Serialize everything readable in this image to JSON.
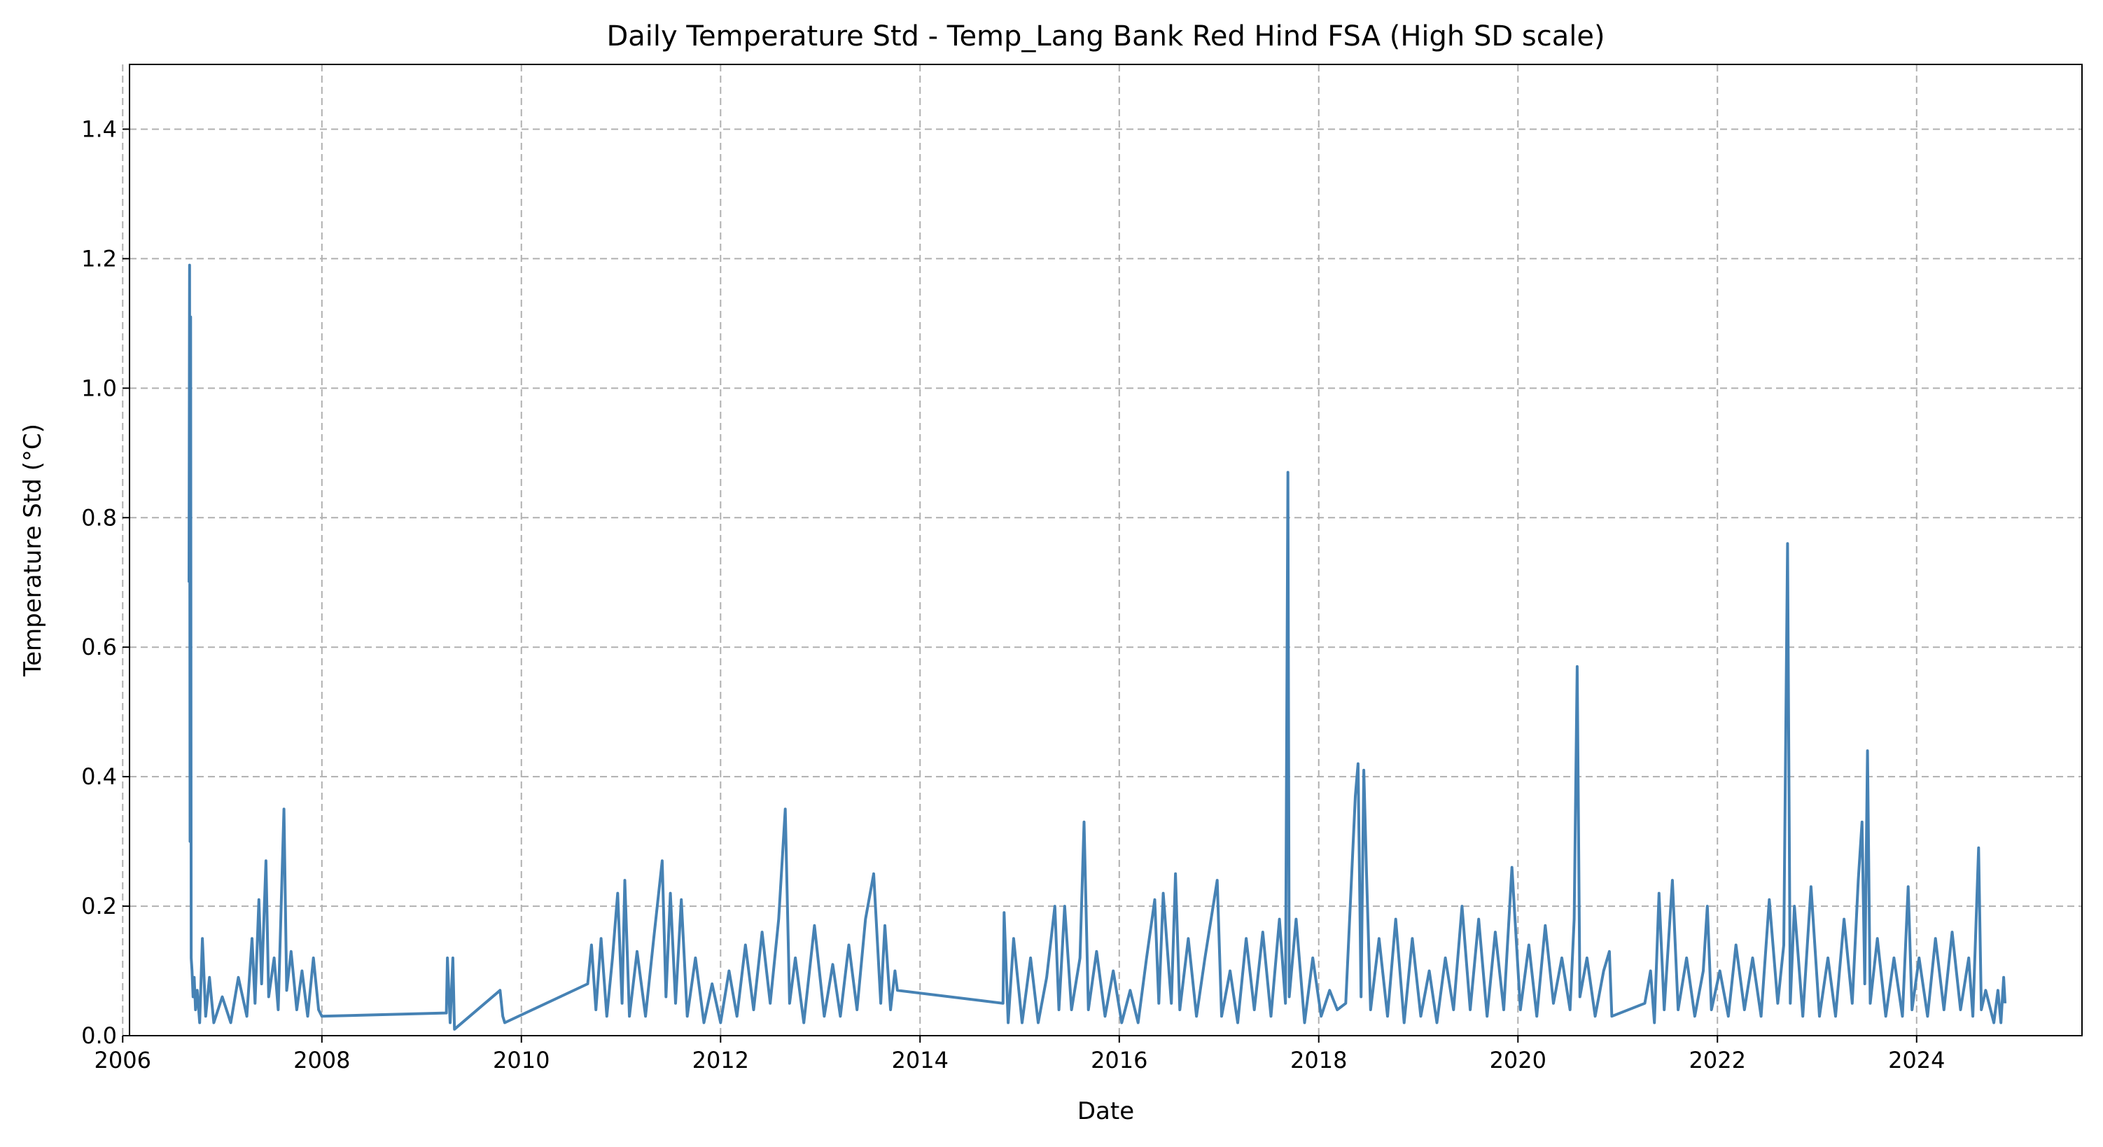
{
  "chart_data": {
    "type": "line",
    "title": "Daily Temperature Std - Temp_Lang Bank Red Hind FSA (High SD scale)",
    "xlabel": "Date",
    "ylabel": "Temperature Std (°C)",
    "xlim": [
      "2006-01-26",
      "2025-08-29"
    ],
    "ylim": [
      0,
      1.5
    ],
    "grid": true,
    "line_color": "#4682b4",
    "x_ticks": [
      "2006",
      "2008",
      "2010",
      "2012",
      "2014",
      "2016",
      "2018",
      "2020",
      "2022",
      "2024"
    ],
    "y_ticks": [
      "0.0",
      "0.2",
      "0.4",
      "0.6",
      "0.8",
      "1.0",
      "1.2",
      "1.4"
    ],
    "series": [
      {
        "points": [
          [
            "2006-09-01",
            0.7
          ],
          [
            "2006-09-03",
            1.19
          ],
          [
            "2006-09-05",
            0.3
          ],
          [
            "2006-09-07",
            1.11
          ],
          [
            "2006-09-09",
            0.12
          ],
          [
            "2006-09-12",
            0.1
          ],
          [
            "2006-09-16",
            0.06
          ],
          [
            "2006-09-20",
            0.09
          ],
          [
            "2006-09-25",
            0.04
          ],
          [
            "2006-10-01",
            0.07
          ],
          [
            "2006-10-10",
            0.02
          ],
          [
            "2006-10-20",
            0.15
          ],
          [
            "2006-11-01",
            0.03
          ],
          [
            "2006-11-15",
            0.09
          ],
          [
            "2006-12-01",
            0.02
          ],
          [
            "2007-01-01",
            0.06
          ],
          [
            "2007-02-01",
            0.02
          ],
          [
            "2007-03-01",
            0.09
          ],
          [
            "2007-04-01",
            0.03
          ],
          [
            "2007-04-20",
            0.15
          ],
          [
            "2007-05-01",
            0.05
          ],
          [
            "2007-05-15",
            0.21
          ],
          [
            "2007-05-25",
            0.08
          ],
          [
            "2007-06-10",
            0.27
          ],
          [
            "2007-06-20",
            0.06
          ],
          [
            "2007-07-10",
            0.12
          ],
          [
            "2007-07-25",
            0.04
          ],
          [
            "2007-08-15",
            0.35
          ],
          [
            "2007-08-25",
            0.07
          ],
          [
            "2007-09-10",
            0.13
          ],
          [
            "2007-10-01",
            0.04
          ],
          [
            "2007-10-20",
            0.1
          ],
          [
            "2007-11-10",
            0.03
          ],
          [
            "2007-12-01",
            0.12
          ],
          [
            "2007-12-20",
            0.04
          ],
          [
            "2008-01-01",
            0.03
          ],
          [
            "2009-04-01",
            0.035
          ],
          [
            "2009-04-05",
            0.12
          ],
          [
            "2009-04-15",
            0.02
          ],
          [
            "2009-04-25",
            0.12
          ],
          [
            "2009-05-01",
            0.01
          ],
          [
            "2009-10-15",
            0.07
          ],
          [
            "2009-10-25",
            0.03
          ],
          [
            "2009-11-01",
            0.02
          ],
          [
            "2010-09-01",
            0.08
          ],
          [
            "2010-09-15",
            0.14
          ],
          [
            "2010-10-01",
            0.04
          ],
          [
            "2010-10-20",
            0.15
          ],
          [
            "2010-11-10",
            0.03
          ],
          [
            "2010-12-01",
            0.12
          ],
          [
            "2010-12-20",
            0.22
          ],
          [
            "2011-01-05",
            0.05
          ],
          [
            "2011-01-15",
            0.24
          ],
          [
            "2011-02-01",
            0.03
          ],
          [
            "2011-03-01",
            0.13
          ],
          [
            "2011-04-01",
            0.03
          ],
          [
            "2011-05-01",
            0.15
          ],
          [
            "2011-06-01",
            0.27
          ],
          [
            "2011-06-15",
            0.06
          ],
          [
            "2011-07-01",
            0.22
          ],
          [
            "2011-07-20",
            0.05
          ],
          [
            "2011-08-10",
            0.21
          ],
          [
            "2011-09-01",
            0.03
          ],
          [
            "2011-10-01",
            0.12
          ],
          [
            "2011-11-01",
            0.02
          ],
          [
            "2011-12-01",
            0.08
          ],
          [
            "2012-01-01",
            0.02
          ],
          [
            "2012-02-01",
            0.1
          ],
          [
            "2012-03-01",
            0.03
          ],
          [
            "2012-04-01",
            0.14
          ],
          [
            "2012-05-01",
            0.04
          ],
          [
            "2012-06-01",
            0.16
          ],
          [
            "2012-07-01",
            0.05
          ],
          [
            "2012-08-01",
            0.18
          ],
          [
            "2012-08-25",
            0.35
          ],
          [
            "2012-09-10",
            0.05
          ],
          [
            "2012-10-01",
            0.12
          ],
          [
            "2012-11-01",
            0.02
          ],
          [
            "2012-12-10",
            0.17
          ],
          [
            "2013-01-15",
            0.03
          ],
          [
            "2013-02-15",
            0.11
          ],
          [
            "2013-03-15",
            0.03
          ],
          [
            "2013-04-15",
            0.14
          ],
          [
            "2013-05-15",
            0.04
          ],
          [
            "2013-06-15",
            0.18
          ],
          [
            "2013-07-15",
            0.25
          ],
          [
            "2013-08-10",
            0.05
          ],
          [
            "2013-08-25",
            0.17
          ],
          [
            "2013-09-15",
            0.04
          ],
          [
            "2013-10-01",
            0.1
          ],
          [
            "2013-10-10",
            0.07
          ],
          [
            "2014-11-01",
            0.05
          ],
          [
            "2014-11-05",
            0.19
          ],
          [
            "2014-11-20",
            0.02
          ],
          [
            "2014-12-10",
            0.15
          ],
          [
            "2015-01-10",
            0.02
          ],
          [
            "2015-02-10",
            0.12
          ],
          [
            "2015-03-10",
            0.02
          ],
          [
            "2015-04-10",
            0.09
          ],
          [
            "2015-05-10",
            0.2
          ],
          [
            "2015-05-25",
            0.04
          ],
          [
            "2015-06-15",
            0.2
          ],
          [
            "2015-07-10",
            0.04
          ],
          [
            "2015-08-10",
            0.12
          ],
          [
            "2015-08-25",
            0.33
          ],
          [
            "2015-09-10",
            0.04
          ],
          [
            "2015-10-10",
            0.13
          ],
          [
            "2015-11-10",
            0.03
          ],
          [
            "2015-12-10",
            0.1
          ],
          [
            "2016-01-10",
            0.02
          ],
          [
            "2016-02-10",
            0.07
          ],
          [
            "2016-03-10",
            0.02
          ],
          [
            "2016-04-10",
            0.12
          ],
          [
            "2016-05-10",
            0.21
          ],
          [
            "2016-05-25",
            0.05
          ],
          [
            "2016-06-10",
            0.22
          ],
          [
            "2016-07-10",
            0.05
          ],
          [
            "2016-07-25",
            0.25
          ],
          [
            "2016-08-10",
            0.04
          ],
          [
            "2016-09-10",
            0.15
          ],
          [
            "2016-10-10",
            0.03
          ],
          [
            "2016-11-10",
            0.12
          ],
          [
            "2016-12-25",
            0.24
          ],
          [
            "2017-01-10",
            0.03
          ],
          [
            "2017-02-10",
            0.1
          ],
          [
            "2017-03-10",
            0.02
          ],
          [
            "2017-04-10",
            0.15
          ],
          [
            "2017-05-10",
            0.04
          ],
          [
            "2017-06-10",
            0.16
          ],
          [
            "2017-07-10",
            0.03
          ],
          [
            "2017-08-10",
            0.18
          ],
          [
            "2017-09-01",
            0.05
          ],
          [
            "2017-09-10",
            0.87
          ],
          [
            "2017-09-15",
            0.06
          ],
          [
            "2017-10-10",
            0.18
          ],
          [
            "2017-11-10",
            0.02
          ],
          [
            "2017-12-10",
            0.12
          ],
          [
            "2018-01-10",
            0.03
          ],
          [
            "2018-02-10",
            0.07
          ],
          [
            "2018-03-10",
            0.04
          ],
          [
            "2018-04-10",
            0.05
          ],
          [
            "2018-05-15",
            0.37
          ],
          [
            "2018-05-25",
            0.42
          ],
          [
            "2018-06-05",
            0.06
          ],
          [
            "2018-06-15",
            0.41
          ],
          [
            "2018-06-25",
            0.25
          ],
          [
            "2018-07-10",
            0.04
          ],
          [
            "2018-08-10",
            0.15
          ],
          [
            "2018-09-10",
            0.03
          ],
          [
            "2018-10-10",
            0.18
          ],
          [
            "2018-11-10",
            0.02
          ],
          [
            "2018-12-10",
            0.15
          ],
          [
            "2019-01-10",
            0.03
          ],
          [
            "2019-02-10",
            0.1
          ],
          [
            "2019-03-10",
            0.02
          ],
          [
            "2019-04-10",
            0.12
          ],
          [
            "2019-05-10",
            0.04
          ],
          [
            "2019-06-10",
            0.2
          ],
          [
            "2019-07-10",
            0.04
          ],
          [
            "2019-08-10",
            0.18
          ],
          [
            "2019-09-10",
            0.03
          ],
          [
            "2019-10-10",
            0.16
          ],
          [
            "2019-11-10",
            0.04
          ],
          [
            "2019-12-10",
            0.26
          ],
          [
            "2020-01-10",
            0.04
          ],
          [
            "2020-02-10",
            0.14
          ],
          [
            "2020-03-10",
            0.03
          ],
          [
            "2020-04-10",
            0.17
          ],
          [
            "2020-05-10",
            0.05
          ],
          [
            "2020-06-10",
            0.12
          ],
          [
            "2020-07-10",
            0.04
          ],
          [
            "2020-07-25",
            0.18
          ],
          [
            "2020-08-05",
            0.57
          ],
          [
            "2020-08-15",
            0.06
          ],
          [
            "2020-09-10",
            0.12
          ],
          [
            "2020-10-10",
            0.03
          ],
          [
            "2020-11-10",
            0.1
          ],
          [
            "2020-12-01",
            0.13
          ],
          [
            "2020-12-10",
            0.03
          ],
          [
            "2021-04-10",
            0.05
          ],
          [
            "2021-05-01",
            0.1
          ],
          [
            "2021-05-15",
            0.02
          ],
          [
            "2021-06-01",
            0.22
          ],
          [
            "2021-06-20",
            0.04
          ],
          [
            "2021-07-20",
            0.24
          ],
          [
            "2021-08-10",
            0.04
          ],
          [
            "2021-09-10",
            0.12
          ],
          [
            "2021-10-10",
            0.03
          ],
          [
            "2021-11-10",
            0.1
          ],
          [
            "2021-11-25",
            0.2
          ],
          [
            "2021-12-10",
            0.04
          ],
          [
            "2022-01-10",
            0.1
          ],
          [
            "2022-02-10",
            0.03
          ],
          [
            "2022-03-10",
            0.14
          ],
          [
            "2022-04-10",
            0.04
          ],
          [
            "2022-05-10",
            0.12
          ],
          [
            "2022-06-10",
            0.03
          ],
          [
            "2022-07-10",
            0.21
          ],
          [
            "2022-08-10",
            0.05
          ],
          [
            "2022-09-01",
            0.14
          ],
          [
            "2022-09-15",
            0.76
          ],
          [
            "2022-09-25",
            0.05
          ],
          [
            "2022-10-10",
            0.2
          ],
          [
            "2022-11-10",
            0.03
          ],
          [
            "2022-12-10",
            0.23
          ],
          [
            "2023-01-10",
            0.03
          ],
          [
            "2023-02-10",
            0.12
          ],
          [
            "2023-03-10",
            0.03
          ],
          [
            "2023-04-10",
            0.18
          ],
          [
            "2023-05-10",
            0.05
          ],
          [
            "2023-06-01",
            0.24
          ],
          [
            "2023-06-15",
            0.33
          ],
          [
            "2023-06-25",
            0.08
          ],
          [
            "2023-07-05",
            0.44
          ],
          [
            "2023-07-15",
            0.05
          ],
          [
            "2023-08-10",
            0.15
          ],
          [
            "2023-09-10",
            0.03
          ],
          [
            "2023-10-10",
            0.12
          ],
          [
            "2023-11-10",
            0.03
          ],
          [
            "2023-12-01",
            0.23
          ],
          [
            "2023-12-15",
            0.04
          ],
          [
            "2024-01-10",
            0.12
          ],
          [
            "2024-02-10",
            0.03
          ],
          [
            "2024-03-10",
            0.15
          ],
          [
            "2024-04-10",
            0.04
          ],
          [
            "2024-05-10",
            0.16
          ],
          [
            "2024-06-10",
            0.04
          ],
          [
            "2024-07-10",
            0.12
          ],
          [
            "2024-07-25",
            0.03
          ],
          [
            "2024-08-15",
            0.29
          ],
          [
            "2024-08-25",
            0.04
          ],
          [
            "2024-09-10",
            0.07
          ],
          [
            "2024-10-10",
            0.02
          ],
          [
            "2024-10-25",
            0.07
          ],
          [
            "2024-11-05",
            0.02
          ],
          [
            "2024-11-15",
            0.09
          ],
          [
            "2024-11-20",
            0.05
          ]
        ]
      }
    ]
  }
}
